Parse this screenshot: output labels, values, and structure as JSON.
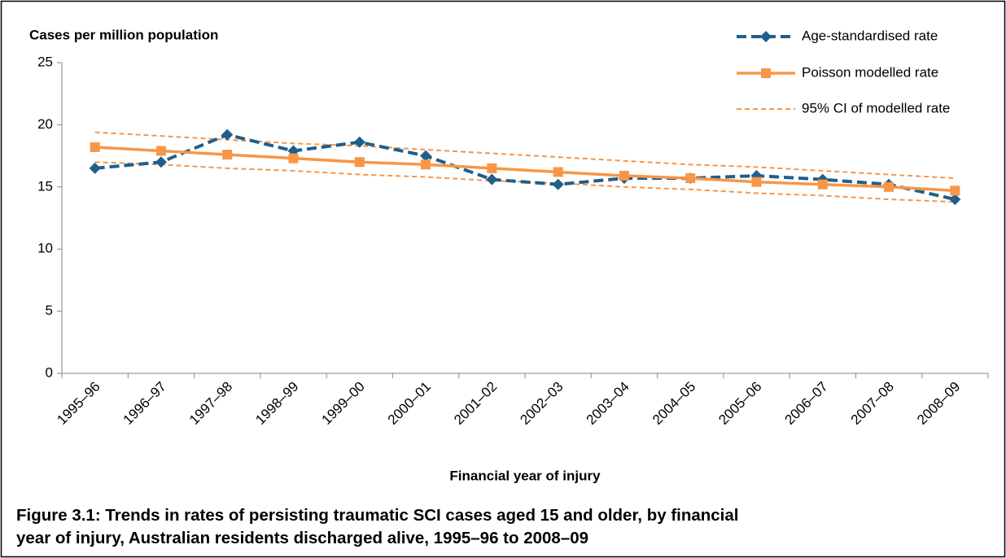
{
  "chart_data": {
    "type": "line",
    "y_axis_label": "Cases per million population",
    "x_axis_label": "Financial year of injury",
    "caption": [
      "Figure 3.1: Trends in rates of persisting traumatic SCI cases aged 15 and older, by financial",
      "year of injury, Australian residents discharged alive, 1995–96 to 2008–09"
    ],
    "categories": [
      "1995–96",
      "1996–97",
      "1997–98",
      "1998–99",
      "1999–00",
      "2000–01",
      "2001–02",
      "2002–03",
      "2003–04",
      "2004–05",
      "2005–06",
      "2006–07",
      "2007–08",
      "2008–09"
    ],
    "series": [
      {
        "name": "Age-standardised rate",
        "color": "#1f5f8b",
        "dash": true,
        "marker": "diamond",
        "values": [
          16.5,
          17.0,
          19.2,
          17.9,
          18.6,
          17.5,
          15.6,
          15.2,
          15.7,
          15.7,
          15.9,
          15.6,
          15.2,
          14.0
        ]
      },
      {
        "name": "Poisson modelled rate",
        "color": "#f79646",
        "dash": false,
        "marker": "square",
        "values": [
          18.2,
          17.9,
          17.6,
          17.3,
          17.0,
          16.8,
          16.5,
          16.2,
          15.9,
          15.7,
          15.4,
          15.2,
          15.0,
          14.7
        ]
      }
    ],
    "ci": {
      "name": "95% CI of modelled rate",
      "color": "#f79646",
      "upper": [
        19.4,
        19.1,
        18.8,
        18.5,
        18.3,
        18.0,
        17.7,
        17.4,
        17.1,
        16.8,
        16.6,
        16.3,
        16.0,
        15.7
      ],
      "lower": [
        17.0,
        16.8,
        16.5,
        16.3,
        16.0,
        15.8,
        15.5,
        15.3,
        15.0,
        14.8,
        14.5,
        14.3,
        14.0,
        13.8
      ]
    },
    "ylim": [
      0,
      25
    ],
    "yticks": [
      0,
      5,
      10,
      15,
      20,
      25
    ],
    "grid": false,
    "legend": "top-right"
  }
}
